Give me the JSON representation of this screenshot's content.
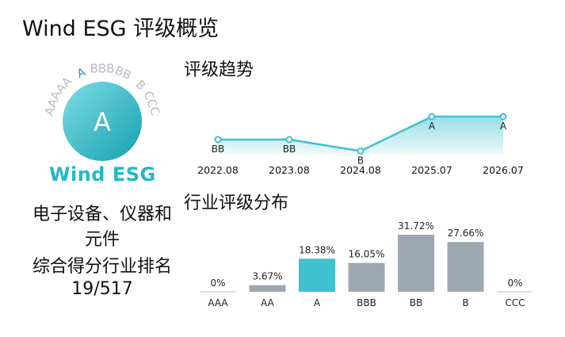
{
  "page": {
    "title": "Wind ESG 评级概览"
  },
  "badge": {
    "current_rating": "A",
    "scale": [
      "AAA",
      "AA",
      "A",
      "BBB",
      "BB",
      "B",
      "CCC"
    ],
    "logo_text": "Wind ESG",
    "colors": {
      "gradient_start": "#7fdde6",
      "gradient_end": "#159fae",
      "scale_text": "#b6bcc2",
      "active_scale": "#22a7b7",
      "logo": "#22b8c8"
    }
  },
  "industry": {
    "name_line1": "电子设备、仪器和",
    "name_line2": "元件",
    "rank_caption": "综合得分行业排名",
    "rank_value": "19/517"
  },
  "trend": {
    "title": "评级趋势"
  },
  "distribution": {
    "title": "行业评级分布"
  },
  "chart_data": [
    {
      "type": "line",
      "title": "评级趋势",
      "x": [
        "2022.08",
        "2023.08",
        "2024.08",
        "2025.07",
        "2026.07"
      ],
      "series": [
        {
          "values": [
            "BB",
            "BB",
            "B",
            "A",
            "A"
          ]
        }
      ],
      "y_scale": [
        "CCC",
        "B",
        "BB",
        "BBB",
        "A",
        "AA",
        "AAA"
      ],
      "color": "#3fc1cf",
      "grid": false
    },
    {
      "type": "bar",
      "title": "行业评级分布",
      "categories": [
        "AAA",
        "AA",
        "A",
        "BBB",
        "BB",
        "B",
        "CCC"
      ],
      "values": [
        0,
        3.67,
        18.38,
        16.05,
        31.72,
        27.66,
        0
      ],
      "labels": [
        "0%",
        "3.67%",
        "18.38%",
        "16.05%",
        "31.72%",
        "27.66%",
        "0%"
      ],
      "highlight": "A",
      "colors": {
        "highlight": "#3fc1cf",
        "default": "#9ea8b2"
      },
      "grid": false
    }
  ]
}
